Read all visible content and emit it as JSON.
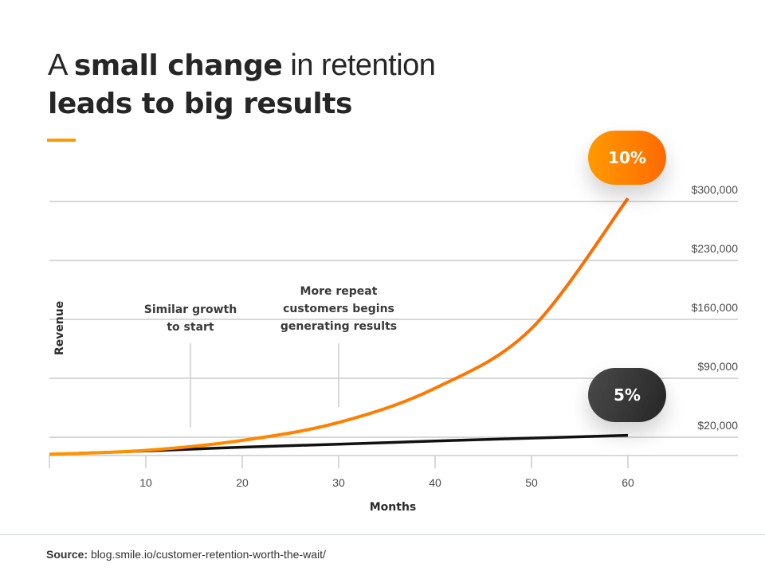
{
  "header": {
    "title_part1": "A ",
    "title_bold1": "small change",
    "title_part2": " in retention",
    "title_line2": "leads to big results",
    "accent_color": "#ff9900"
  },
  "footer": {
    "source_label": "Source:",
    "source_text": " blog.smile.io/customer-retention-worth-the-wait/"
  },
  "chart_data": {
    "type": "line",
    "title": "A small change in retention leads to big results",
    "xlabel": "Months",
    "ylabel": "Revenue",
    "xlim": [
      0,
      60
    ],
    "ylim": [
      0,
      300000
    ],
    "x_ticks": [
      10,
      20,
      30,
      40,
      50,
      60
    ],
    "x_tick_labels": [
      "10",
      "20",
      "30",
      "40",
      "50",
      "60"
    ],
    "y_ticks": [
      20000,
      90000,
      160000,
      230000,
      300000
    ],
    "y_tick_labels": [
      "$20,000",
      "$90,000",
      "$160,000",
      "$230,000",
      "$300,000"
    ],
    "y_axis_side": "right",
    "grid": true,
    "x": [
      0,
      10,
      20,
      30,
      40,
      50,
      60
    ],
    "series": [
      {
        "name": "10%",
        "color": "#ff7a00",
        "values": [
          1000,
          5700,
          17500,
          38800,
          79500,
          150400,
          305000
        ]
      },
      {
        "name": "5%",
        "color": "#111111",
        "values": [
          1000,
          5000,
          9500,
          13000,
          16800,
          20200,
          23500
        ]
      }
    ],
    "series_labels": [
      {
        "series": "10%",
        "text": "10%",
        "color": "#ff7f00"
      },
      {
        "series": "5%",
        "text": "5%",
        "color": "#333333"
      }
    ],
    "annotations": [
      {
        "text_lines": [
          "Similar growth",
          "to start"
        ],
        "x": 15
      },
      {
        "text_lines": [
          "More repeat",
          "customers begins",
          "generating results"
        ],
        "x": 30
      }
    ]
  }
}
